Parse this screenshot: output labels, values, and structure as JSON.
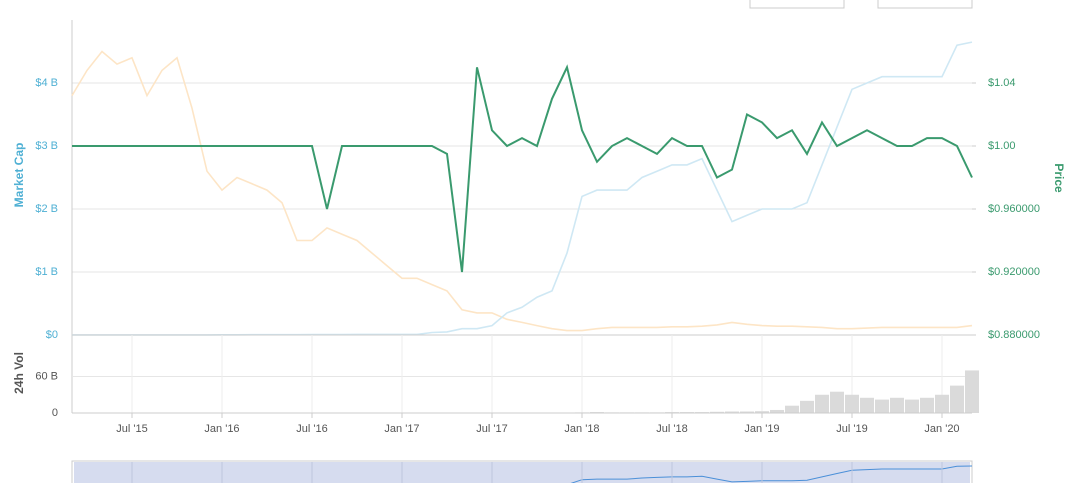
{
  "chart_data": [
    {
      "type": "line",
      "y_label": "Market Cap",
      "y2_label": "Price",
      "x": [
        "2015-03",
        "2015-04",
        "2015-05",
        "2015-06",
        "2015-07",
        "2015-08",
        "2015-09",
        "2015-10",
        "2015-11",
        "2015-12",
        "2016-01",
        "2016-02",
        "2016-03",
        "2016-04",
        "2016-05",
        "2016-06",
        "2016-07",
        "2016-08",
        "2016-09",
        "2016-10",
        "2016-11",
        "2016-12",
        "2017-01",
        "2017-02",
        "2017-03",
        "2017-04",
        "2017-05",
        "2017-06",
        "2017-07",
        "2017-08",
        "2017-09",
        "2017-10",
        "2017-11",
        "2017-12",
        "2018-01",
        "2018-02",
        "2018-03",
        "2018-04",
        "2018-05",
        "2018-06",
        "2018-07",
        "2018-08",
        "2018-09",
        "2018-10",
        "2018-11",
        "2018-12",
        "2019-01",
        "2019-02",
        "2019-03",
        "2019-04",
        "2019-05",
        "2019-06",
        "2019-07",
        "2019-08",
        "2019-09",
        "2019-10",
        "2019-11",
        "2019-12",
        "2020-01",
        "2020-02",
        "2020-03"
      ],
      "xlim": [
        "2015-03",
        "2020-03"
      ],
      "ylim": [
        0,
        5
      ],
      "yticks": [
        {
          "value": 0,
          "label": "$0"
        },
        {
          "value": 1,
          "label": "$1 B"
        },
        {
          "value": 2,
          "label": "$2 B"
        },
        {
          "value": 3,
          "label": "$3 B"
        },
        {
          "value": 4,
          "label": "$4 B"
        }
      ],
      "y2lim": [
        0.88,
        1.08
      ],
      "y2ticks": [
        {
          "value": 0.88,
          "label": "$0.880000"
        },
        {
          "value": 0.92,
          "label": "$0.920000"
        },
        {
          "value": 0.96,
          "label": "$0.960000"
        },
        {
          "value": 1.0,
          "label": "$1.00"
        },
        {
          "value": 1.04,
          "label": "$1.04"
        }
      ],
      "grid": true,
      "series": [
        {
          "color": "#fde5c6",
          "values": [
            3.8,
            4.2,
            4.5,
            4.3,
            4.4,
            3.8,
            4.2,
            4.4,
            3.6,
            2.6,
            2.3,
            2.5,
            2.4,
            2.3,
            2.1,
            1.5,
            1.5,
            1.7,
            1.6,
            1.5,
            1.3,
            1.1,
            0.9,
            0.9,
            0.8,
            0.7,
            0.4,
            0.35,
            0.35,
            0.25,
            0.2,
            0.15,
            0.1,
            0.07,
            0.07,
            0.1,
            0.12,
            0.12,
            0.12,
            0.12,
            0.13,
            0.13,
            0.14,
            0.16,
            0.2,
            0.17,
            0.15,
            0.14,
            0.14,
            0.13,
            0.12,
            0.1,
            0.1,
            0.11,
            0.12,
            0.12,
            0.12,
            0.12,
            0.12,
            0.12,
            0.15
          ]
        },
        {
          "color": "#cfe8f4",
          "values": [
            0.001,
            0.001,
            0.001,
            0.001,
            0.001,
            0.001,
            0.001,
            0.001,
            0.001,
            0.001,
            0.003,
            0.003,
            0.005,
            0.005,
            0.005,
            0.005,
            0.006,
            0.006,
            0.008,
            0.01,
            0.01,
            0.01,
            0.01,
            0.01,
            0.04,
            0.05,
            0.1,
            0.1,
            0.15,
            0.35,
            0.44,
            0.6,
            0.7,
            1.3,
            2.2,
            2.3,
            2.3,
            2.3,
            2.5,
            2.6,
            2.7,
            2.7,
            2.8,
            2.3,
            1.8,
            1.9,
            2.0,
            2.0,
            2.0,
            2.1,
            2.7,
            3.3,
            3.9,
            4.0,
            4.1,
            4.1,
            4.1,
            4.1,
            4.1,
            4.6,
            4.65
          ]
        },
        {
          "color": "#3a9a6e",
          "axis": "y2",
          "values": [
            1,
            1,
            1,
            1,
            1,
            1,
            1,
            1,
            1,
            1,
            1,
            1,
            1,
            1,
            1,
            1,
            1,
            0.96,
            1,
            1,
            1,
            1,
            1,
            1,
            1,
            0.995,
            0.92,
            1.05,
            1.01,
            1.0,
            1.005,
            1.0,
            1.03,
            1.05,
            1.01,
            0.99,
            1.0,
            1.005,
            1.0,
            0.995,
            1.005,
            1.0,
            1.0,
            0.98,
            0.985,
            1.02,
            1.015,
            1.005,
            1.01,
            0.995,
            1.015,
            1.0,
            1.005,
            1.01,
            1.005,
            1.0,
            1.0,
            1.005,
            1.005,
            1.0,
            0.98
          ]
        }
      ]
    },
    {
      "type": "bar",
      "y_label": "24h Vol",
      "x": [
        "2015-03",
        "2015-04",
        "2015-05",
        "2015-06",
        "2015-07",
        "2015-08",
        "2015-09",
        "2015-10",
        "2015-11",
        "2015-12",
        "2016-01",
        "2016-02",
        "2016-03",
        "2016-04",
        "2016-05",
        "2016-06",
        "2016-07",
        "2016-08",
        "2016-09",
        "2016-10",
        "2016-11",
        "2016-12",
        "2017-01",
        "2017-02",
        "2017-03",
        "2017-04",
        "2017-05",
        "2017-06",
        "2017-07",
        "2017-08",
        "2017-09",
        "2017-10",
        "2017-11",
        "2017-12",
        "2018-01",
        "2018-02",
        "2018-03",
        "2018-04",
        "2018-05",
        "2018-06",
        "2018-07",
        "2018-08",
        "2018-09",
        "2018-10",
        "2018-11",
        "2018-12",
        "2019-01",
        "2019-02",
        "2019-03",
        "2019-04",
        "2019-05",
        "2019-06",
        "2019-07",
        "2019-08",
        "2019-09",
        "2019-10",
        "2019-11",
        "2019-12",
        "2020-01",
        "2020-02",
        "2020-03"
      ],
      "xlim": [
        "2015-03",
        "2020-03"
      ],
      "xticks": [
        {
          "value": "2015-07",
          "label": "Jul '15"
        },
        {
          "value": "2016-01",
          "label": "Jan '16"
        },
        {
          "value": "2016-07",
          "label": "Jul '16"
        },
        {
          "value": "2017-01",
          "label": "Jan '17"
        },
        {
          "value": "2017-07",
          "label": "Jul '17"
        },
        {
          "value": "2018-01",
          "label": "Jan '18"
        },
        {
          "value": "2018-07",
          "label": "Jul '18"
        },
        {
          "value": "2019-01",
          "label": "Jan '19"
        },
        {
          "value": "2019-07",
          "label": "Jul '19"
        },
        {
          "value": "2020-01",
          "label": "Jan '20"
        }
      ],
      "ylim": [
        0,
        120
      ],
      "yticks": [
        0,
        {
          "value": 60,
          "label": "60 B"
        }
      ],
      "color": "#dadada",
      "values": [
        0,
        0,
        0,
        0,
        0,
        0,
        0,
        0,
        0,
        0,
        0,
        0,
        0,
        0,
        0,
        0,
        0,
        0,
        0,
        0,
        0,
        0,
        0,
        0,
        0,
        0,
        0,
        0,
        0,
        0,
        0,
        0,
        0.1,
        0.5,
        1,
        1.5,
        1,
        1,
        1,
        1,
        1.5,
        1.5,
        1.5,
        2,
        2.5,
        2.5,
        3,
        5,
        12,
        20,
        30,
        35,
        30,
        25,
        22,
        25,
        22,
        25,
        30,
        45,
        70
      ]
    }
  ]
}
